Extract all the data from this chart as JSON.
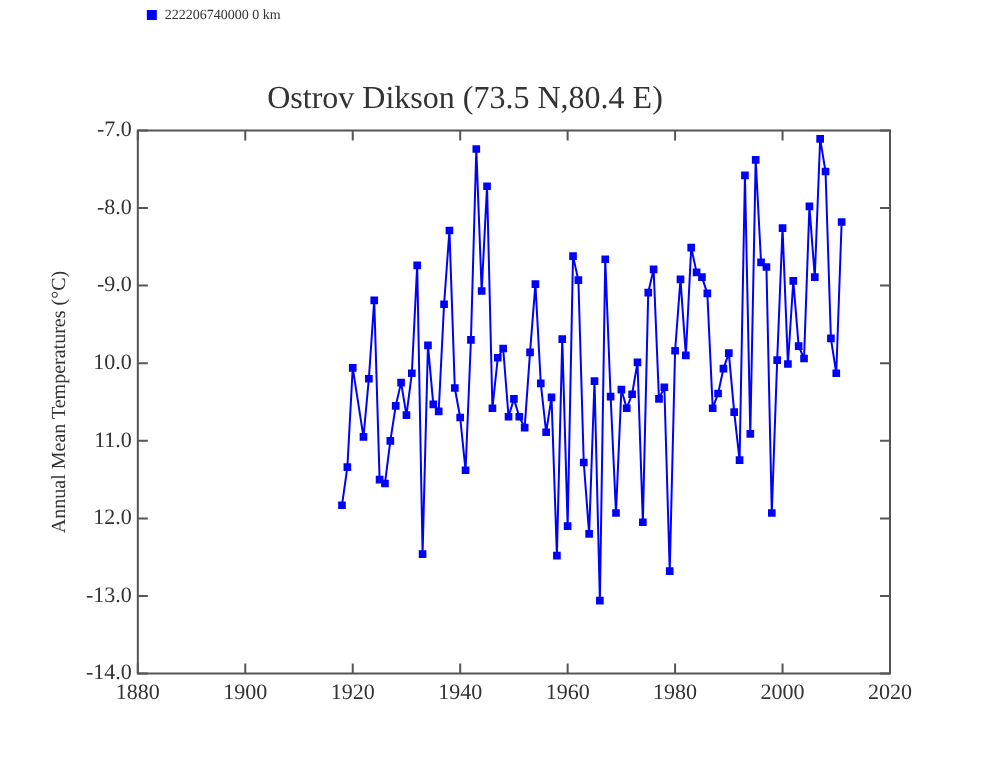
{
  "chart_data": {
    "type": "line",
    "title": "Ostrov Dikson (73.5 N,80.4 E)",
    "ylabel": "Annual Mean Temperatures (°C)",
    "x": [
      1918,
      1919,
      1920,
      1922,
      1923,
      1924,
      1925,
      1926,
      1927,
      1928,
      1929,
      1930,
      1931,
      1932,
      1933,
      1934,
      1935,
      1936,
      1937,
      1938,
      1939,
      1940,
      1941,
      1942,
      1943,
      1944,
      1945,
      1946,
      1947,
      1948,
      1949,
      1950,
      1951,
      1952,
      1953,
      1954,
      1955,
      1956,
      1957,
      1958,
      1959,
      1960,
      1961,
      1962,
      1963,
      1964,
      1965,
      1966,
      1967,
      1968,
      1969,
      1970,
      1971,
      1972,
      1973,
      1974,
      1975,
      1976,
      1977,
      1978,
      1979,
      1980,
      1981,
      1982,
      1983,
      1984,
      1985,
      1986,
      1987,
      1988,
      1989,
      1990,
      1991,
      1992,
      1993,
      1994,
      1995,
      1996,
      1997,
      1998,
      1999,
      2000,
      2001,
      2002,
      2003,
      2004,
      2005,
      2006,
      2007,
      2008,
      2009,
      2010,
      2011
    ],
    "series": [
      {
        "name": "222206740000 0 km",
        "color": "#0000ff",
        "values": [
          -11.83,
          -11.34,
          -10.06,
          -10.95,
          -10.2,
          -9.19,
          -11.5,
          -11.55,
          -11.0,
          -10.55,
          -10.25,
          -10.67,
          -10.13,
          -8.74,
          -12.46,
          -9.77,
          -10.53,
          -10.62,
          -9.24,
          -8.29,
          -10.32,
          -10.7,
          -11.38,
          -9.7,
          -7.24,
          -9.07,
          -7.72,
          -10.58,
          -9.93,
          -9.81,
          -10.69,
          -10.46,
          -10.69,
          -10.83,
          -9.86,
          -8.98,
          -10.26,
          -10.89,
          -10.44,
          -12.48,
          -9.69,
          -12.1,
          -8.62,
          -8.93,
          -11.28,
          -12.2,
          -10.23,
          -13.06,
          -8.66,
          -10.43,
          -11.93,
          -10.34,
          -10.58,
          -10.4,
          -9.99,
          -12.05,
          -9.09,
          -8.79,
          -10.46,
          -10.31,
          -12.68,
          -9.84,
          -8.92,
          -9.9,
          -8.51,
          -8.83,
          -8.89,
          -9.1,
          -10.58,
          -10.39,
          -10.07,
          -9.87,
          -10.63,
          -11.25,
          -7.58,
          -10.91,
          -7.38,
          -8.7,
          -8.76,
          -11.93,
          -9.96,
          -8.26,
          -10.01,
          -8.94,
          -9.78,
          -9.94,
          -7.98,
          -8.89,
          -7.11,
          -7.53,
          -9.68,
          -10.13,
          -8.18
        ]
      }
    ],
    "xlim": [
      1880,
      2020
    ],
    "xticks": [
      1880,
      1900,
      1920,
      1940,
      1960,
      1980,
      2000,
      2020
    ],
    "ylim": [
      -14,
      -7
    ],
    "yticks": [
      {
        "value": -14,
        "label": "-14.0"
      },
      {
        "value": -13,
        "label": "-13.0"
      },
      {
        "value": -12,
        "label": "12.0"
      },
      {
        "value": -11,
        "label": "11.0"
      },
      {
        "value": -10,
        "label": "10.0"
      },
      {
        "value": -9,
        "label": "-9.0"
      },
      {
        "value": -8,
        "label": "-8.0"
      },
      {
        "value": -7,
        "label": "-7.0"
      }
    ],
    "grid": false,
    "legend": "top left",
    "marker": "square",
    "line_style": "solid"
  }
}
